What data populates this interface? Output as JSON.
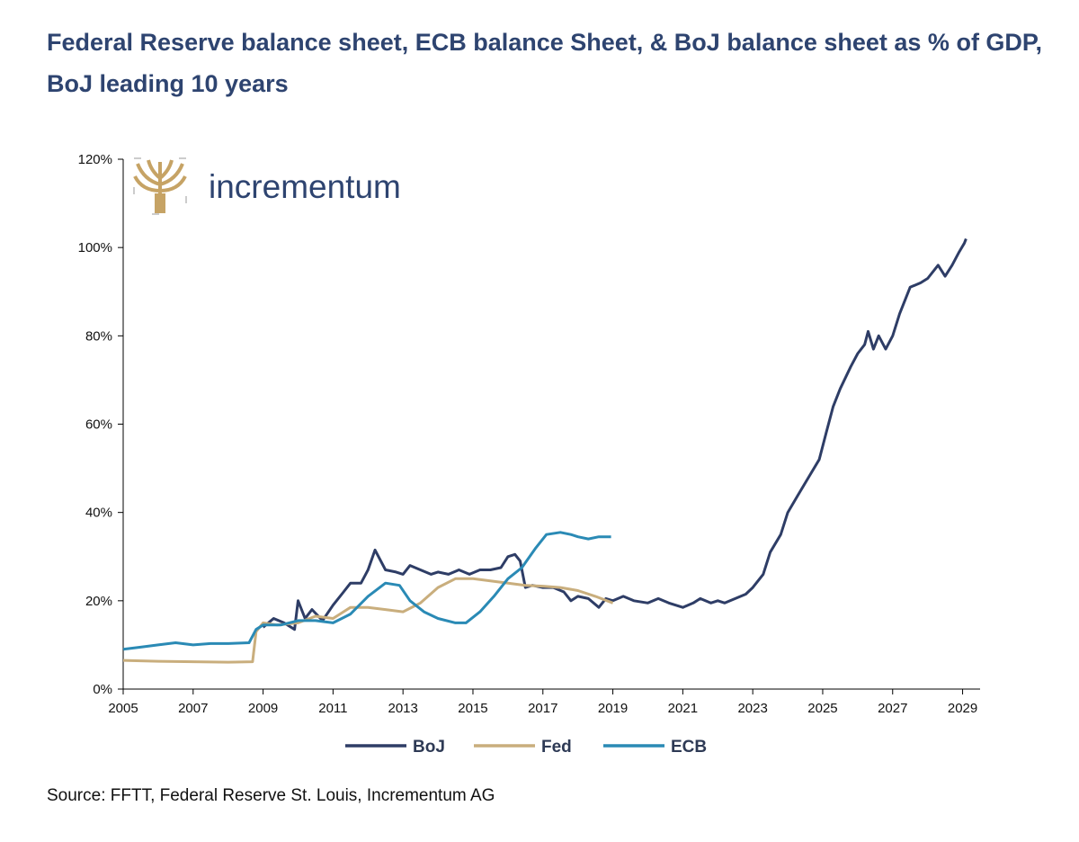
{
  "title": "Federal Reserve balance sheet, ECB balance Sheet, & BoJ balance sheet as % of GDP, BoJ leading 10 years",
  "source": "Source: FFTT, Federal Reserve St. Louis, Incrementum AG",
  "logo": {
    "text": "incrementum",
    "icon": "tree-icon"
  },
  "colors": {
    "BoJ": "#2e3d66",
    "Fed": "#c9ae7d",
    "ECB": "#2a8ab5",
    "title": "#2e4470"
  },
  "chart_data": {
    "type": "line",
    "xlim": [
      2005,
      2029.5
    ],
    "ylim": [
      0,
      120
    ],
    "xticks": [
      "2005",
      "2007",
      "2009",
      "2011",
      "2013",
      "2015",
      "2017",
      "2019",
      "2021",
      "2023",
      "2025",
      "2027",
      "2029"
    ],
    "yticks": [
      "0%",
      "20%",
      "40%",
      "60%",
      "80%",
      "100%",
      "120%"
    ],
    "legend": "bottom",
    "series": [
      {
        "name": "BoJ",
        "points": [
          [
            2009,
            14
          ],
          [
            2009.3,
            16
          ],
          [
            2009.6,
            15
          ],
          [
            2009.9,
            13.5
          ],
          [
            2010.0,
            20
          ],
          [
            2010.2,
            16
          ],
          [
            2010.4,
            18
          ],
          [
            2010.7,
            15.5
          ],
          [
            2011.0,
            19
          ],
          [
            2011.3,
            22
          ],
          [
            2011.5,
            24
          ],
          [
            2011.8,
            24
          ],
          [
            2012.0,
            27
          ],
          [
            2012.2,
            31.5
          ],
          [
            2012.5,
            27
          ],
          [
            2012.8,
            26.5
          ],
          [
            2013.0,
            26
          ],
          [
            2013.2,
            28
          ],
          [
            2013.5,
            27
          ],
          [
            2013.8,
            26
          ],
          [
            2014.0,
            26.5
          ],
          [
            2014.3,
            26
          ],
          [
            2014.6,
            27
          ],
          [
            2014.9,
            26
          ],
          [
            2015.2,
            27
          ],
          [
            2015.5,
            27
          ],
          [
            2015.8,
            27.5
          ],
          [
            2016.0,
            30
          ],
          [
            2016.2,
            30.5
          ],
          [
            2016.35,
            29
          ],
          [
            2016.5,
            23
          ],
          [
            2016.7,
            23.5
          ],
          [
            2017.0,
            23
          ],
          [
            2017.3,
            23
          ],
          [
            2017.6,
            22
          ],
          [
            2017.8,
            20
          ],
          [
            2018.0,
            21
          ],
          [
            2018.3,
            20.5
          ],
          [
            2018.6,
            18.5
          ],
          [
            2018.8,
            20.5
          ],
          [
            2019.0,
            20
          ],
          [
            2019.3,
            21
          ],
          [
            2019.6,
            20
          ],
          [
            2020.0,
            19.5
          ],
          [
            2020.3,
            20.5
          ],
          [
            2020.6,
            19.5
          ],
          [
            2021.0,
            18.5
          ],
          [
            2021.3,
            19.5
          ],
          [
            2021.5,
            20.5
          ],
          [
            2021.8,
            19.5
          ],
          [
            2022.0,
            20
          ],
          [
            2022.2,
            19.5
          ],
          [
            2022.5,
            20.5
          ],
          [
            2022.8,
            21.5
          ],
          [
            2023.0,
            23
          ],
          [
            2023.3,
            26
          ],
          [
            2023.5,
            31
          ],
          [
            2023.8,
            35
          ],
          [
            2024.0,
            40
          ],
          [
            2024.3,
            44
          ],
          [
            2024.6,
            48
          ],
          [
            2024.9,
            52
          ],
          [
            2025.1,
            58
          ],
          [
            2025.3,
            64
          ],
          [
            2025.5,
            68
          ],
          [
            2025.8,
            73
          ],
          [
            2026.0,
            76
          ],
          [
            2026.2,
            78
          ],
          [
            2026.3,
            81
          ],
          [
            2026.45,
            77
          ],
          [
            2026.6,
            80
          ],
          [
            2026.8,
            77
          ],
          [
            2027.0,
            80
          ],
          [
            2027.2,
            85
          ],
          [
            2027.5,
            91
          ],
          [
            2027.8,
            92
          ],
          [
            2028.0,
            93
          ],
          [
            2028.3,
            96
          ],
          [
            2028.5,
            93.5
          ],
          [
            2028.7,
            96
          ],
          [
            2028.9,
            99
          ],
          [
            2029.05,
            101
          ],
          [
            2029.1,
            102
          ]
        ]
      },
      {
        "name": "Fed",
        "points": [
          [
            2005,
            6.5
          ],
          [
            2006,
            6.3
          ],
          [
            2007,
            6.2
          ],
          [
            2008.0,
            6.1
          ],
          [
            2008.7,
            6.2
          ],
          [
            2008.8,
            13
          ],
          [
            2009.0,
            15
          ],
          [
            2009.4,
            14.5
          ],
          [
            2010.0,
            15
          ],
          [
            2010.5,
            16.5
          ],
          [
            2011.0,
            16
          ],
          [
            2011.5,
            18.5
          ],
          [
            2012.0,
            18.5
          ],
          [
            2012.5,
            18
          ],
          [
            2013.0,
            17.5
          ],
          [
            2013.5,
            19.5
          ],
          [
            2014.0,
            23
          ],
          [
            2014.5,
            25
          ],
          [
            2015.0,
            25
          ],
          [
            2015.5,
            24.5
          ],
          [
            2016.0,
            24
          ],
          [
            2016.5,
            23.5
          ],
          [
            2017.0,
            23.3
          ],
          [
            2017.5,
            23
          ],
          [
            2018.0,
            22.3
          ],
          [
            2018.5,
            21
          ],
          [
            2019.0,
            19.5
          ]
        ]
      },
      {
        "name": "ECB",
        "points": [
          [
            2005,
            9
          ],
          [
            2005.5,
            9.5
          ],
          [
            2006,
            10
          ],
          [
            2006.5,
            10.5
          ],
          [
            2007,
            10
          ],
          [
            2007.5,
            10.3
          ],
          [
            2008,
            10.3
          ],
          [
            2008.6,
            10.5
          ],
          [
            2008.8,
            13.5
          ],
          [
            2009.0,
            14.5
          ],
          [
            2009.5,
            14.5
          ],
          [
            2010.0,
            15.5
          ],
          [
            2010.5,
            15.5
          ],
          [
            2011.0,
            15
          ],
          [
            2011.5,
            17
          ],
          [
            2012.0,
            21
          ],
          [
            2012.5,
            24
          ],
          [
            2012.9,
            23.5
          ],
          [
            2013.2,
            20
          ],
          [
            2013.6,
            17.5
          ],
          [
            2014.0,
            16
          ],
          [
            2014.5,
            15
          ],
          [
            2014.8,
            15
          ],
          [
            2015.2,
            17.5
          ],
          [
            2015.6,
            21
          ],
          [
            2016.0,
            25
          ],
          [
            2016.4,
            27.5
          ],
          [
            2016.8,
            32
          ],
          [
            2017.1,
            35
          ],
          [
            2017.5,
            35.5
          ],
          [
            2017.8,
            35
          ],
          [
            2018.0,
            34.5
          ],
          [
            2018.3,
            34
          ],
          [
            2018.6,
            34.5
          ],
          [
            2018.95,
            34.5
          ]
        ]
      }
    ]
  }
}
